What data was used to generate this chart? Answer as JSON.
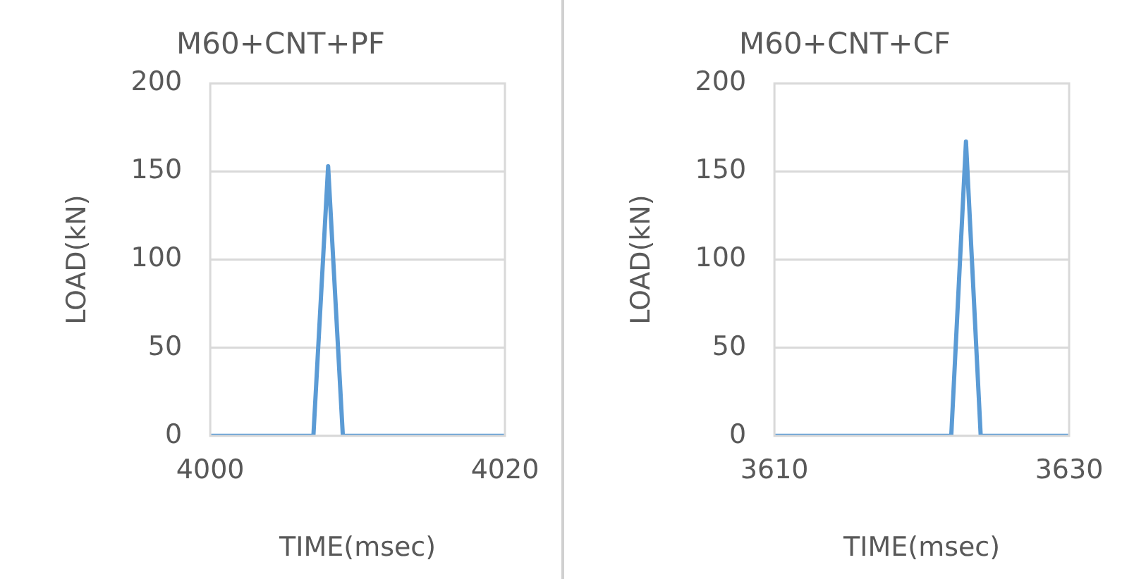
{
  "chart_data": [
    {
      "type": "line",
      "title": "M60+CNT+PF",
      "xlabel": "TIME(msec)",
      "ylabel": "LOAD(kN)",
      "x": [
        4000,
        4007,
        4008,
        4009,
        4020
      ],
      "series": [
        {
          "color": "#5b9bd5",
          "values": [
            0,
            0,
            153,
            0,
            0
          ]
        }
      ],
      "xlim": [
        4000,
        4020
      ],
      "xticks": [
        4000,
        4020
      ],
      "ylim": [
        0,
        200
      ],
      "yticks": [
        0,
        50,
        100,
        150,
        200
      ],
      "grid": "y",
      "legend": false,
      "marker": "none",
      "line_style": "solid"
    },
    {
      "type": "line",
      "title": "M60+CNT+CF",
      "xlabel": "TIME(msec)",
      "ylabel": "LOAD(kN)",
      "x": [
        3610,
        3622,
        3623,
        3624,
        3630
      ],
      "series": [
        {
          "color": "#5b9bd5",
          "values": [
            0,
            0,
            167,
            0,
            0
          ]
        }
      ],
      "xlim": [
        3610,
        3630
      ],
      "xticks": [
        3610,
        3630
      ],
      "ylim": [
        0,
        200
      ],
      "yticks": [
        0,
        50,
        100,
        150,
        200
      ],
      "grid": "y",
      "legend": false,
      "marker": "none",
      "line_style": "solid"
    }
  ]
}
